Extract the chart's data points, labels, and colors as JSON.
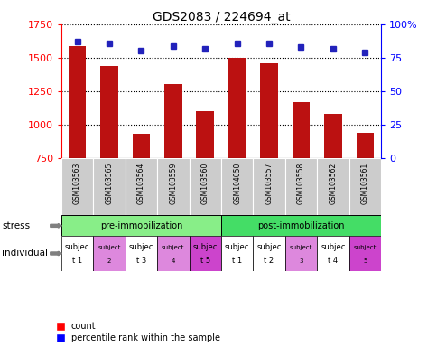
{
  "title": "GDS2083 / 224694_at",
  "samples": [
    "GSM103563",
    "GSM103565",
    "GSM103564",
    "GSM103559",
    "GSM103560",
    "GSM104050",
    "GSM103557",
    "GSM103558",
    "GSM103562",
    "GSM103561"
  ],
  "counts": [
    1590,
    1440,
    930,
    1300,
    1100,
    1500,
    1460,
    1170,
    1080,
    940
  ],
  "percentile_ranks": [
    87,
    86,
    80,
    84,
    82,
    86,
    86,
    83,
    82,
    79
  ],
  "ylim_left": [
    750,
    1750
  ],
  "ylim_right": [
    0,
    100
  ],
  "yticks_left": [
    750,
    1000,
    1250,
    1500,
    1750
  ],
  "yticks_right": [
    0,
    25,
    50,
    75,
    100
  ],
  "bar_color": "#bb1111",
  "dot_color": "#2222bb",
  "indiv_colors": [
    "#ffffff",
    "#dd88dd",
    "#ffffff",
    "#dd88dd",
    "#cc44cc",
    "#ffffff",
    "#ffffff",
    "#dd88dd",
    "#ffffff",
    "#cc44cc"
  ],
  "indiv_line1": [
    "subjec",
    "subject",
    "subjec",
    "subject",
    "subjec",
    "subjec",
    "subjec",
    "subject",
    "subjec",
    "subject"
  ],
  "indiv_line2": [
    "t 1",
    "2",
    "t 3",
    "4",
    "t 5",
    "t 1",
    "t 2",
    "3",
    "t 4",
    "5"
  ],
  "large_font": [
    true,
    false,
    true,
    false,
    true,
    true,
    true,
    false,
    true,
    false
  ],
  "stress_color_pre": "#88ee88",
  "stress_color_post": "#44dd66",
  "sample_bg": "#cccccc"
}
